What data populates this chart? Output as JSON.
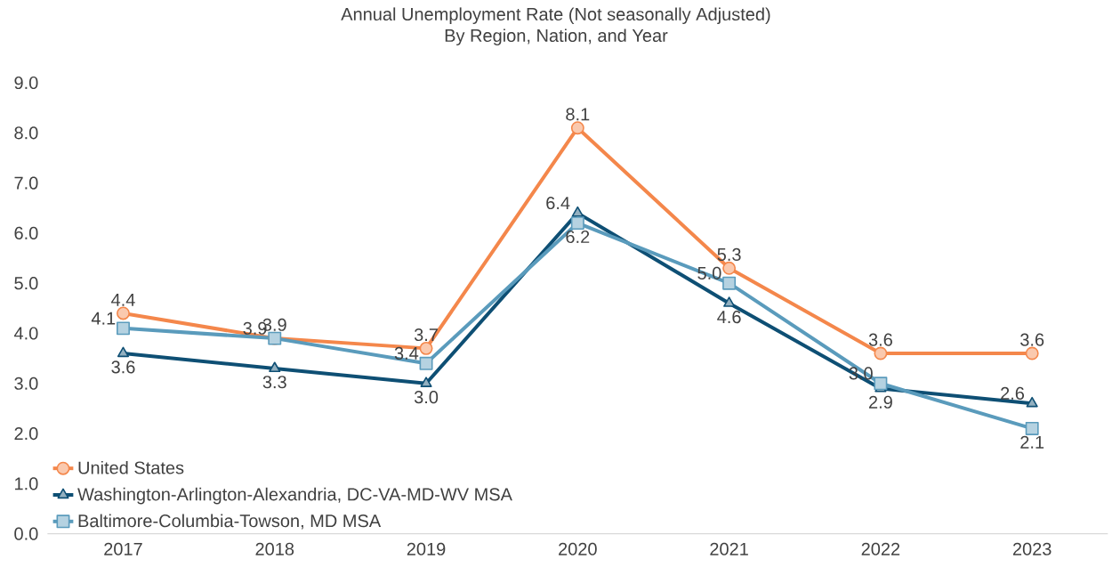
{
  "chart_data": {
    "type": "line",
    "title": "Annual Unemployment Rate (Not seasonally Adjusted)",
    "subtitle": "By Region, Nation, and Year",
    "categories": [
      "2017",
      "2018",
      "2019",
      "2020",
      "2021",
      "2022",
      "2023"
    ],
    "series": [
      {
        "name": "United States",
        "color": "#f4874b",
        "marker": "circle",
        "values": [
          4.4,
          3.9,
          3.7,
          8.1,
          5.3,
          3.6,
          3.6
        ],
        "value_labels": [
          "4.4",
          "3.9",
          "3.7",
          "8.1",
          "5.3",
          "3.6",
          "3.6"
        ]
      },
      {
        "name": "Washington-Arlington-Alexandria, DC-VA-MD-WV MSA",
        "color": "#0e4f74",
        "marker": "triangle",
        "values": [
          3.6,
          3.3,
          3.0,
          6.4,
          4.6,
          2.9,
          2.6
        ],
        "value_labels": [
          "3.6",
          "3.3",
          "3.0",
          "6.4",
          "4.6",
          "2.9",
          "2.6"
        ]
      },
      {
        "name": "Baltimore-Columbia-Towson, MD MSA",
        "color": "#5a9bbc",
        "marker": "square",
        "values": [
          4.1,
          3.9,
          3.4,
          6.2,
          5.0,
          3.0,
          2.1
        ],
        "value_labels": [
          "4.1",
          "3.9",
          "3.4",
          "6.2",
          "5.0",
          "3.0",
          "2.1"
        ]
      }
    ],
    "ylim": [
      0,
      9
    ],
    "yticks": [
      {
        "value": 0,
        "label": "0.0"
      },
      {
        "value": 1,
        "label": "1.0"
      },
      {
        "value": 2,
        "label": "2.0"
      },
      {
        "value": 3,
        "label": "3.0"
      },
      {
        "value": 4,
        "label": "4.0"
      },
      {
        "value": 5,
        "label": "5.0"
      },
      {
        "value": 6,
        "label": "6.0"
      },
      {
        "value": 7,
        "label": "7.0"
      },
      {
        "value": 8,
        "label": "8.0"
      },
      {
        "value": 9,
        "label": "9.0"
      }
    ],
    "grid": false,
    "legend": "bottom left",
    "line_style": "solid"
  }
}
